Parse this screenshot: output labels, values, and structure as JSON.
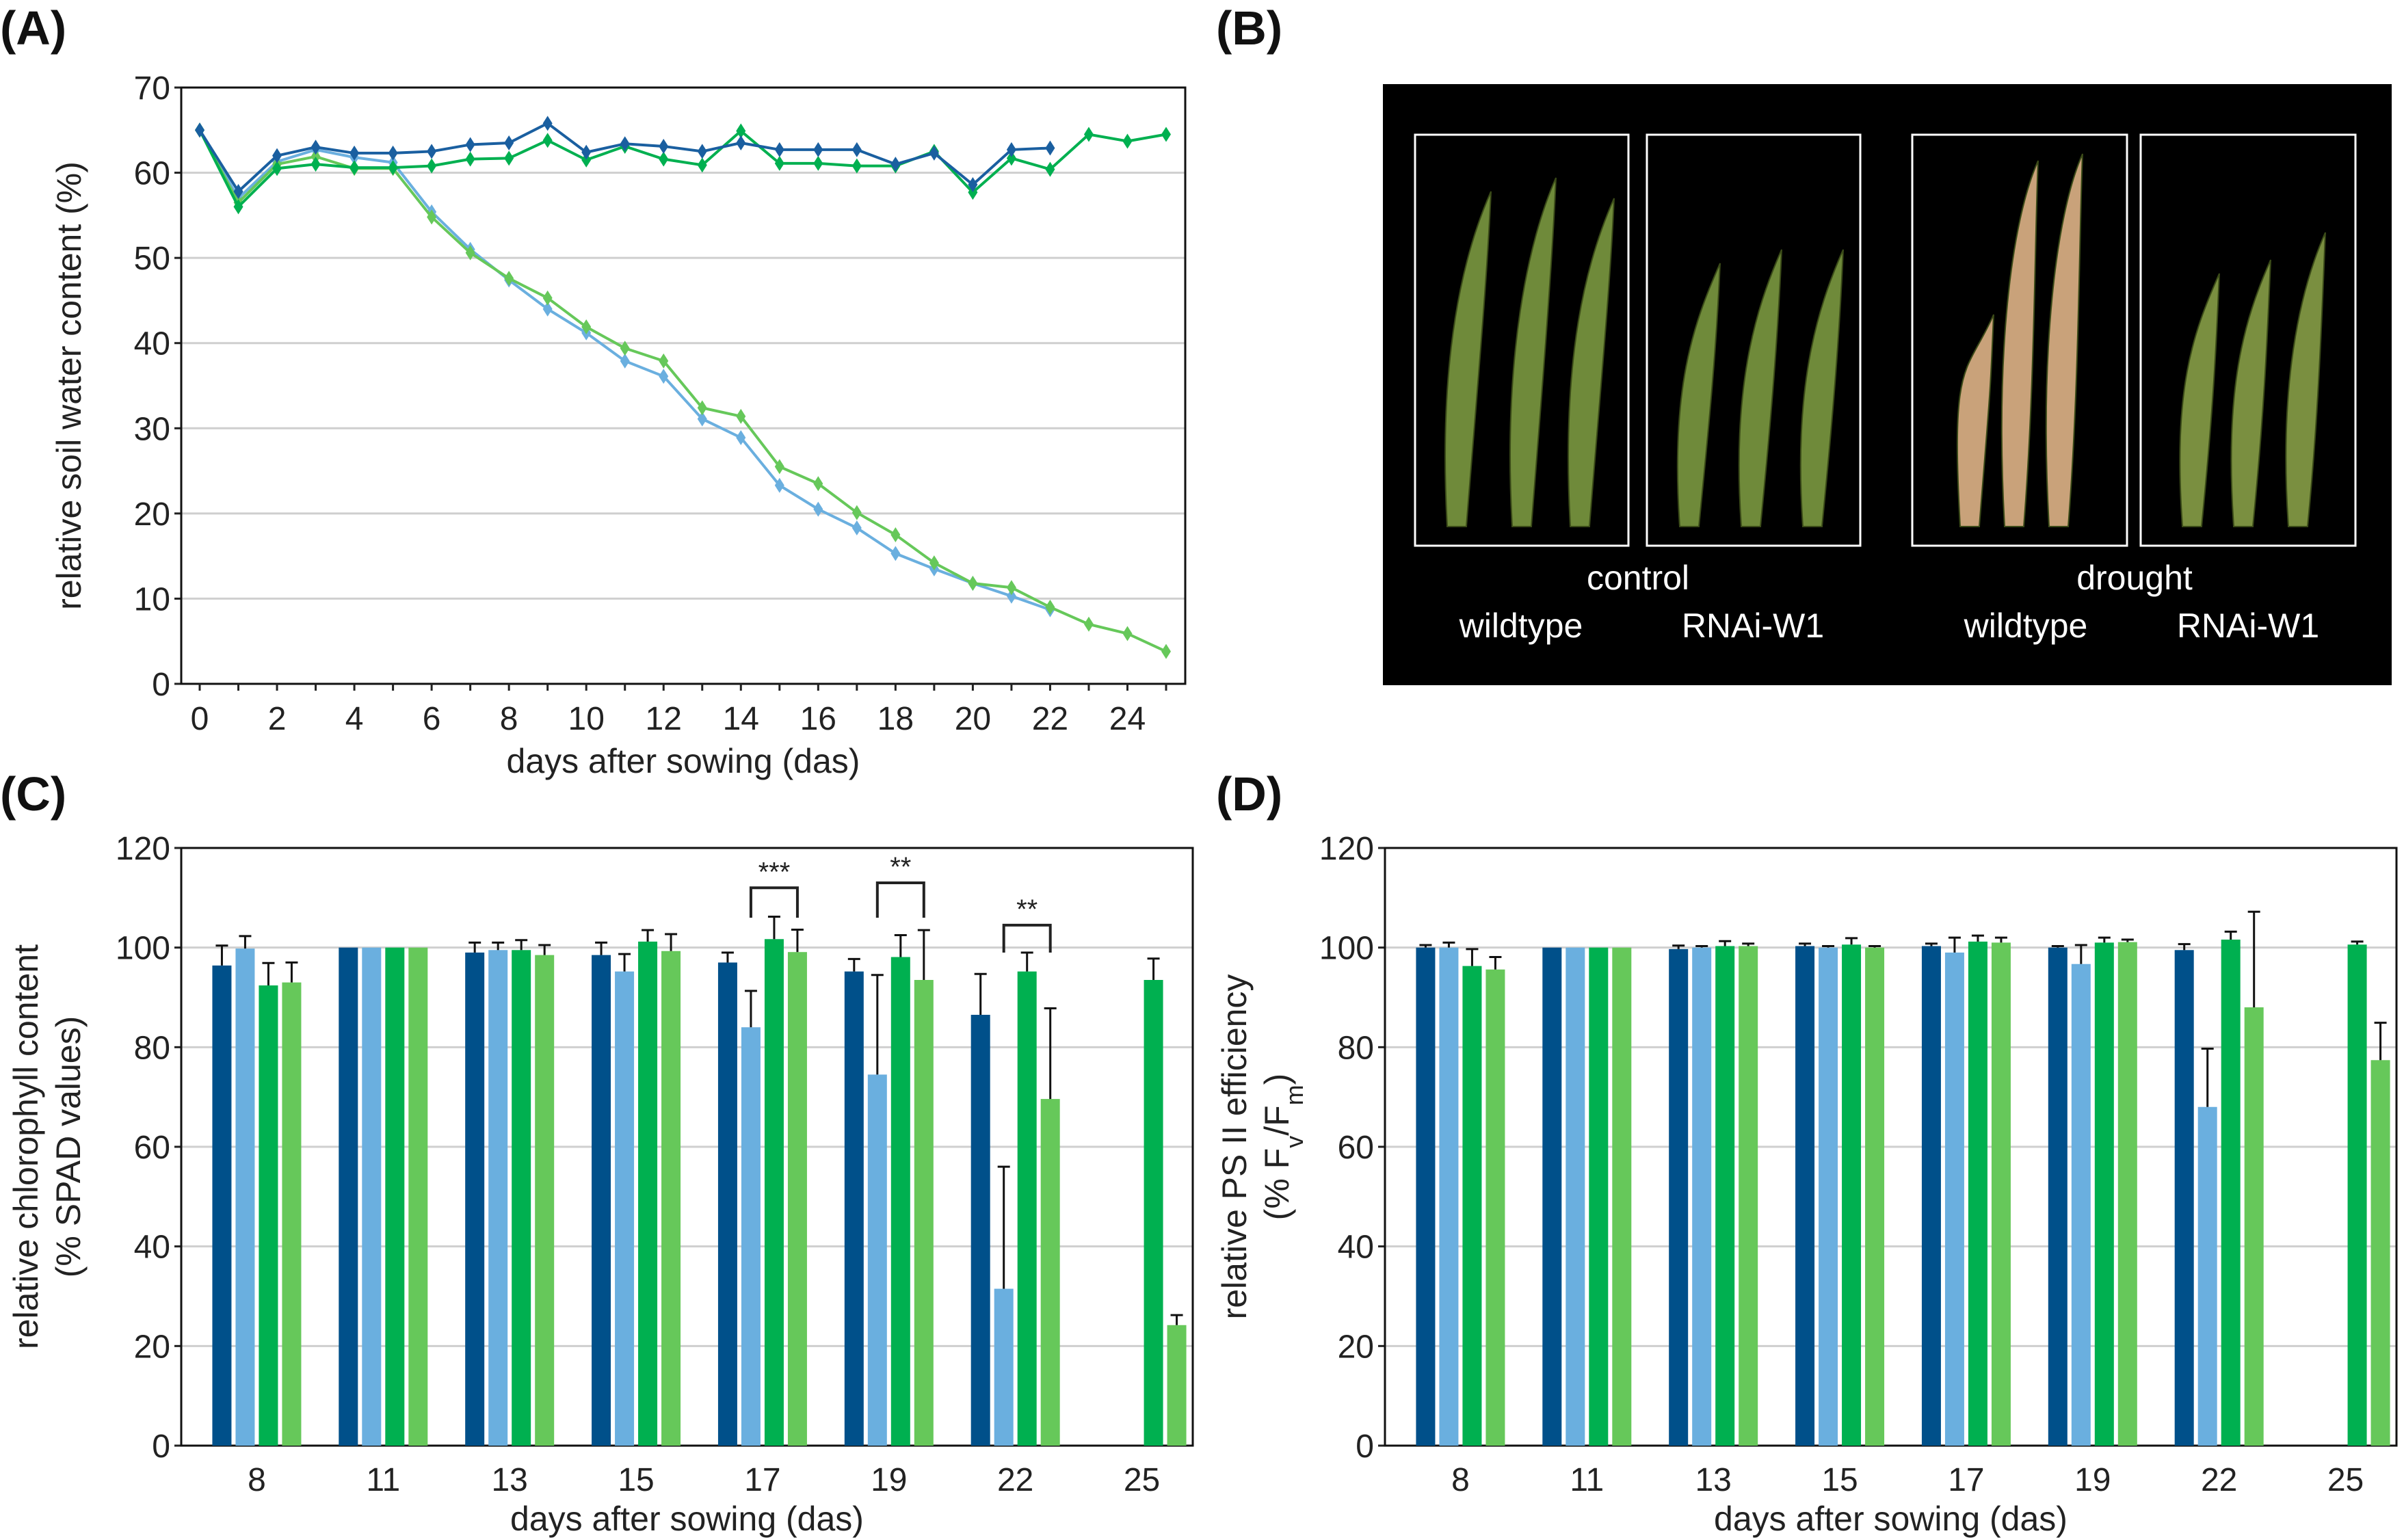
{
  "colors": {
    "control_wildtype": "#00508a",
    "drought_wildtype": "#6aafdf",
    "control_rnai": "#00b050",
    "drought_rnai": "#66c85a",
    "line_control_wildtype": "#1a5fa0"
  },
  "panel_labels": {
    "a": "(A)",
    "b": "(B)",
    "c": "(C)",
    "d": "(D)"
  },
  "photo": {
    "control": "control",
    "drought": "drought",
    "labels": [
      "wildtype",
      "RNAi-W1",
      "wildtype",
      "RNAi-W1"
    ]
  },
  "chart_data": [
    {
      "id": "A",
      "type": "line",
      "xlabel": "days after sowing (das)",
      "ylabel": "relative soil water content (%)",
      "xlim": [
        0,
        25
      ],
      "ylim": [
        0,
        70
      ],
      "yticks": [
        "0",
        "10",
        "20",
        "30",
        "40",
        "50",
        "60",
        "70"
      ],
      "xticks": [
        "0",
        "2",
        "4",
        "6",
        "8",
        "10",
        "12",
        "14",
        "16",
        "18",
        "20",
        "22",
        "24"
      ],
      "grid": true,
      "series": [
        {
          "name": "control wildtype",
          "color": "#1a5fa0",
          "x": [
            0,
            1,
            2,
            3,
            4,
            5,
            6,
            7,
            8,
            9,
            10,
            11,
            12,
            13,
            14,
            15,
            16,
            17,
            18,
            19,
            20,
            21,
            22
          ],
          "y": [
            65,
            57.8,
            62,
            63,
            62.3,
            62.3,
            62.5,
            63.3,
            63.5,
            65.8,
            62.4,
            63.4,
            63.1,
            62.5,
            63.5,
            62.7,
            62.7,
            62.7,
            61,
            62.3,
            58.6,
            62.7,
            62.9
          ]
        },
        {
          "name": "control RNAi-W1",
          "color": "#00b050",
          "x": [
            0,
            1,
            2,
            3,
            4,
            5,
            6,
            7,
            8,
            9,
            10,
            11,
            12,
            13,
            14,
            15,
            16,
            17,
            18,
            19,
            20,
            21,
            22,
            23,
            24,
            25
          ],
          "y": [
            65,
            56,
            60.5,
            61,
            60.6,
            60.6,
            60.8,
            61.6,
            61.7,
            63.8,
            61.5,
            63.1,
            61.6,
            60.9,
            64.9,
            61.1,
            61.1,
            60.8,
            60.8,
            62.5,
            57.7,
            61.7,
            60.4,
            64.5,
            63.7,
            64.5
          ]
        },
        {
          "name": "drought wildtype",
          "color": "#6aafdf",
          "x": [
            0,
            1,
            2,
            3,
            4,
            5,
            6,
            7,
            8,
            9,
            10,
            11,
            12,
            13,
            14,
            15,
            16,
            17,
            18,
            19,
            20,
            21,
            22
          ],
          "y": [
            65,
            57,
            61.3,
            62.7,
            61.8,
            61.2,
            55.4,
            51,
            47.4,
            44,
            41.2,
            37.9,
            36.1,
            31.1,
            28.9,
            23.3,
            20.5,
            18.3,
            15.3,
            13.5,
            11.8,
            10.3,
            8.7
          ]
        },
        {
          "name": "drought RNAi-W1",
          "color": "#66c85a",
          "x": [
            0,
            1,
            2,
            3,
            4,
            5,
            6,
            7,
            8,
            9,
            10,
            11,
            12,
            13,
            14,
            15,
            16,
            17,
            18,
            19,
            20,
            21,
            22,
            23,
            24,
            25
          ],
          "y": [
            65,
            56.5,
            61,
            61.9,
            60.5,
            60.5,
            54.8,
            50.6,
            47.6,
            45.3,
            41.9,
            39.4,
            37.9,
            32.4,
            31.4,
            25.5,
            23.5,
            20.1,
            17.5,
            14.2,
            11.8,
            11.3,
            9,
            7,
            5.9,
            3.8
          ]
        }
      ]
    },
    {
      "id": "C",
      "type": "bar",
      "xlabel": "days after sowing (das)",
      "ylabel": [
        "relative chlorophyll content",
        "(% SPAD values)"
      ],
      "ylim": [
        0,
        120
      ],
      "yticks": [
        "0",
        "20",
        "40",
        "60",
        "80",
        "100",
        "120"
      ],
      "grid": true,
      "categories": [
        "8",
        "11",
        "13",
        "15",
        "17",
        "19",
        "22",
        "25"
      ],
      "series": [
        {
          "name": "control wildtype",
          "color": "#00508a",
          "values": [
            96.4,
            100,
            99,
            98.5,
            97,
            95.2,
            86.5,
            null
          ],
          "errors": [
            4,
            0,
            2,
            2.5,
            2,
            2.5,
            8.2,
            null
          ]
        },
        {
          "name": "drought wildtype",
          "color": "#6aafdf",
          "values": [
            99.8,
            100,
            99.5,
            95.2,
            84,
            74.5,
            31.5,
            null
          ],
          "errors": [
            2.5,
            0,
            1.5,
            3.5,
            7.3,
            20,
            24.5,
            null
          ]
        },
        {
          "name": "control RNAi-W1",
          "color": "#00b050",
          "values": [
            92.4,
            100,
            99.5,
            101.2,
            101.7,
            98.1,
            95.2,
            93.5
          ],
          "errors": [
            4.5,
            0,
            2,
            2.3,
            4.5,
            4.4,
            3.8,
            4.3
          ]
        },
        {
          "name": "drought RNAi-W1",
          "color": "#66c85a",
          "values": [
            93,
            100,
            98.5,
            99.3,
            99.1,
            93.5,
            69.6,
            24.2
          ],
          "errors": [
            4,
            0,
            2,
            3.4,
            4.5,
            10,
            18.2,
            2
          ]
        }
      ],
      "significance": [
        {
          "category": "17",
          "from_series": 1,
          "to_series": 3,
          "label": "***",
          "top": 112,
          "bottom": 106
        },
        {
          "category": "19",
          "from_series": 1,
          "to_series": 3,
          "label": "**",
          "top": 113,
          "bottom": 106
        },
        {
          "category": "22",
          "from_series": 1,
          "to_series": 3,
          "label": "**",
          "top": 104.5,
          "bottom": 99
        }
      ]
    },
    {
      "id": "D",
      "type": "bar",
      "xlabel": "days after sowing (das)",
      "ylabel": [
        "relative PS II efficiency",
        "(% F",
        "v",
        "/F",
        "m",
        ")"
      ],
      "ylim": [
        0,
        120
      ],
      "yticks": [
        "0",
        "20",
        "40",
        "60",
        "80",
        "100",
        "120"
      ],
      "grid": true,
      "categories": [
        "8",
        "11",
        "13",
        "15",
        "17",
        "19",
        "22",
        "25"
      ],
      "series": [
        {
          "name": "control wildtype",
          "color": "#00508a",
          "values": [
            100,
            100,
            99.7,
            100.3,
            100.3,
            100,
            99.5,
            null
          ],
          "errors": [
            0.5,
            0,
            0.7,
            0.5,
            0.5,
            0.3,
            1.2,
            null
          ]
        },
        {
          "name": "drought wildtype",
          "color": "#6aafdf",
          "values": [
            100,
            100,
            100,
            100,
            99,
            96.7,
            68,
            null
          ],
          "errors": [
            1,
            0,
            0.3,
            0.3,
            3,
            3.8,
            11.7,
            null
          ]
        },
        {
          "name": "control RNAi-W1",
          "color": "#00b050",
          "values": [
            96.3,
            100,
            100.3,
            100.6,
            101.2,
            101,
            101.6,
            100.6
          ],
          "errors": [
            3.4,
            0,
            1,
            1.3,
            1.2,
            1,
            1.6,
            0.6
          ]
        },
        {
          "name": "drought RNAi-W1",
          "color": "#66c85a",
          "values": [
            95.6,
            100,
            100.3,
            100,
            101,
            101.1,
            88,
            77.4
          ],
          "errors": [
            2.5,
            0,
            0.5,
            0.3,
            1,
            0.5,
            19.2,
            7.5
          ]
        }
      ],
      "significance": []
    }
  ]
}
